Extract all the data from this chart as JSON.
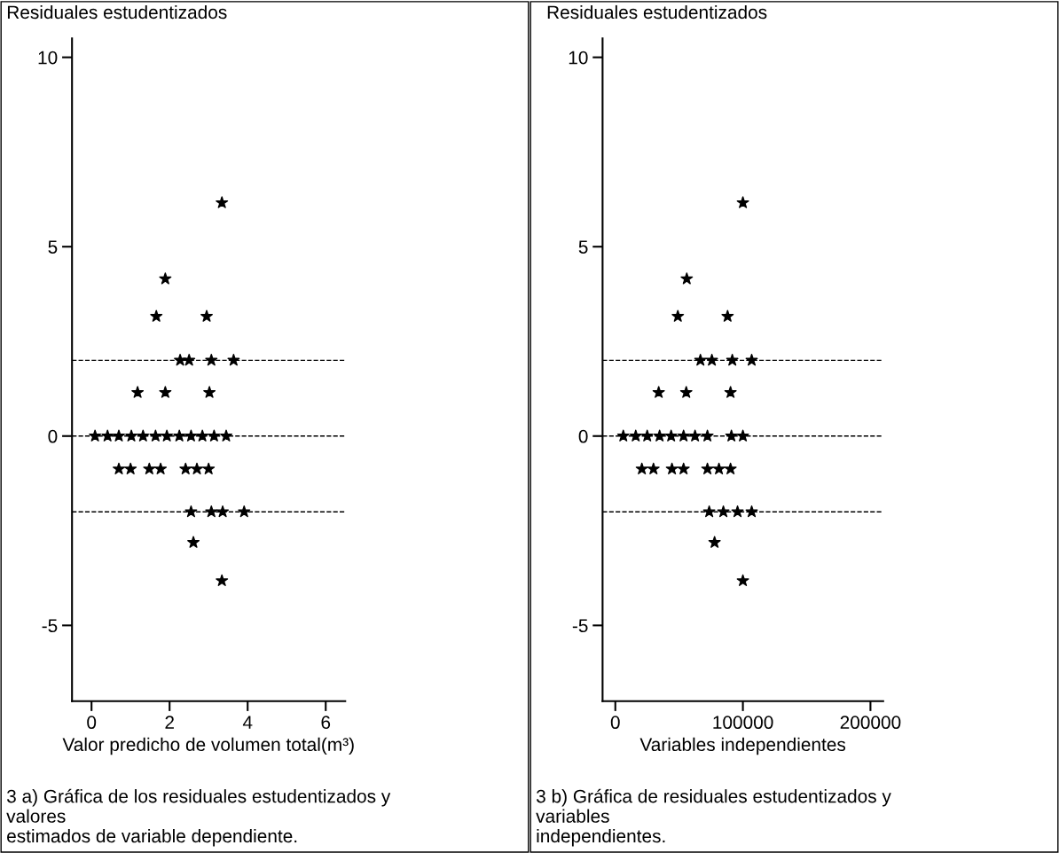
{
  "chart_data": [
    {
      "type": "scatter",
      "ylabel": "Residuales estudentizados",
      "xlabel": "Valor predicho de volumen total(m³)",
      "xlim": [
        -0.5,
        6.5
      ],
      "xticks": [
        0,
        2,
        4,
        6
      ],
      "ylim": [
        -7,
        10.5
      ],
      "yticks": [
        -5,
        0,
        5,
        10
      ],
      "grid": false,
      "marker": "star",
      "color": "#000000",
      "x": [
        3.34,
        1.89,
        1.66,
        2.95,
        2.27,
        2.5,
        3.07,
        3.64,
        1.18,
        1.89,
        3.02,
        0.09,
        0.41,
        0.7,
        1.02,
        1.32,
        1.64,
        1.93,
        2.25,
        2.55,
        2.84,
        3.14,
        3.45,
        0.7,
        1.0,
        1.48,
        1.77,
        2.41,
        2.7,
        3.0,
        2.55,
        3.07,
        3.36,
        3.91,
        2.61,
        3.34
      ],
      "values": [
        6.16,
        4.15,
        3.16,
        3.16,
        2.0,
        2.0,
        2.0,
        2.0,
        1.15,
        1.15,
        1.15,
        0,
        0,
        0,
        0,
        0,
        0,
        0,
        0,
        0,
        0,
        0,
        0,
        -0.87,
        -0.87,
        -0.87,
        -0.87,
        -0.87,
        -0.87,
        -0.87,
        -2.0,
        -2.0,
        -2.0,
        -2.0,
        -2.81,
        -3.82
      ],
      "ref_lines": [
        {
          "axis": "y",
          "value": 2,
          "line_style": "dashed"
        },
        {
          "axis": "y",
          "value": 0,
          "line_style": "dashed"
        },
        {
          "axis": "y",
          "value": -2,
          "line_style": "dashed"
        }
      ],
      "annotations": [
        "3 a) Gráfica de los residuales estudentizados y valores estimados de variable dependiente."
      ]
    },
    {
      "type": "scatter",
      "ylabel": "Residuales estudentizados",
      "xlabel": "Variables independientes",
      "xlim": [
        -10000,
        210000
      ],
      "xticks": [
        0,
        100000,
        200000
      ],
      "ylim": [
        -7,
        10.5
      ],
      "yticks": [
        -5,
        0,
        5,
        10
      ],
      "grid": false,
      "marker": "star",
      "color": "#000000",
      "x": [
        100000,
        56000,
        49000,
        88000,
        66700,
        75700,
        91700,
        106900,
        34000,
        55600,
        90300,
        6250,
        16000,
        25000,
        34700,
        43750,
        53500,
        62500,
        72200,
        91000,
        100000,
        20800,
        29900,
        44400,
        53500,
        72200,
        81250,
        90300,
        73600,
        84700,
        95800,
        106900,
        77800,
        100000
      ],
      "values": [
        6.16,
        4.15,
        3.16,
        3.16,
        2.0,
        2.0,
        2.0,
        2.0,
        1.15,
        1.15,
        1.15,
        0,
        0,
        0,
        0,
        0,
        0,
        0,
        0,
        0,
        0,
        -0.87,
        -0.87,
        -0.87,
        -0.87,
        -0.87,
        -0.87,
        -0.87,
        -2.0,
        -2.0,
        -2.0,
        -2.0,
        -2.81,
        -3.82
      ],
      "ref_lines": [
        {
          "axis": "y",
          "value": 2,
          "line_style": "dashed"
        },
        {
          "axis": "y",
          "value": 0,
          "line_style": "dashed"
        },
        {
          "axis": "y",
          "value": -2,
          "line_style": "dashed"
        }
      ],
      "annotations": [
        "3 b) Gráfica de residuales estudentizados y variables independientes."
      ]
    }
  ]
}
